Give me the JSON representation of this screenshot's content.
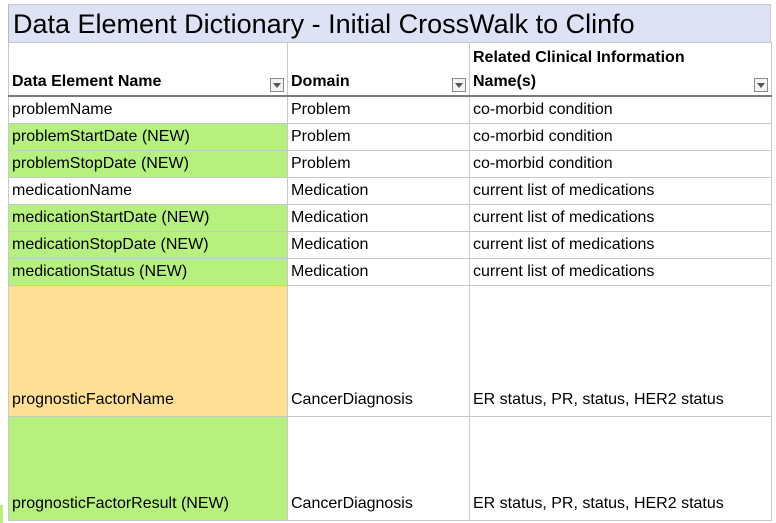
{
  "title": "Data Element Dictionary - Initial CrossWalk to Clinfo",
  "columns": [
    {
      "label": "Data Element Name"
    },
    {
      "label": "Domain"
    },
    {
      "label": "Related Clinical Information Name(s)"
    }
  ],
  "rows": [
    {
      "name": "problemName",
      "domain": "Problem",
      "related": "co-morbid condition",
      "highlight": "none"
    },
    {
      "name": "problemStartDate (NEW)",
      "domain": "Problem",
      "related": "co-morbid condition",
      "highlight": "green"
    },
    {
      "name": "problemStopDate (NEW)",
      "domain": "Problem",
      "related": "co-morbid condition",
      "highlight": "green"
    },
    {
      "name": "medicationName",
      "domain": "Medication",
      "related": "current list of medications",
      "highlight": "none"
    },
    {
      "name": "medicationStartDate (NEW)",
      "domain": "Medication",
      "related": "current list of medications",
      "highlight": "green"
    },
    {
      "name": "medicationStopDate (NEW)",
      "domain": "Medication",
      "related": "current list of medications",
      "highlight": "green"
    },
    {
      "name": "medicationStatus (NEW)",
      "domain": "Medication",
      "related": "current list of medications",
      "highlight": "green"
    },
    {
      "name": "prognosticFactorName",
      "domain": "CancerDiagnosis",
      "related": "ER status, PR, status, HER2 status",
      "highlight": "orange"
    },
    {
      "name": "prognosticFactorResult (NEW)",
      "domain": "CancerDiagnosis",
      "related": "ER status, PR, status, HER2 status",
      "highlight": "green"
    }
  ],
  "colors": {
    "green": "#b6f07e",
    "orange": "#fde095",
    "title_bg": "#dde3f4"
  }
}
